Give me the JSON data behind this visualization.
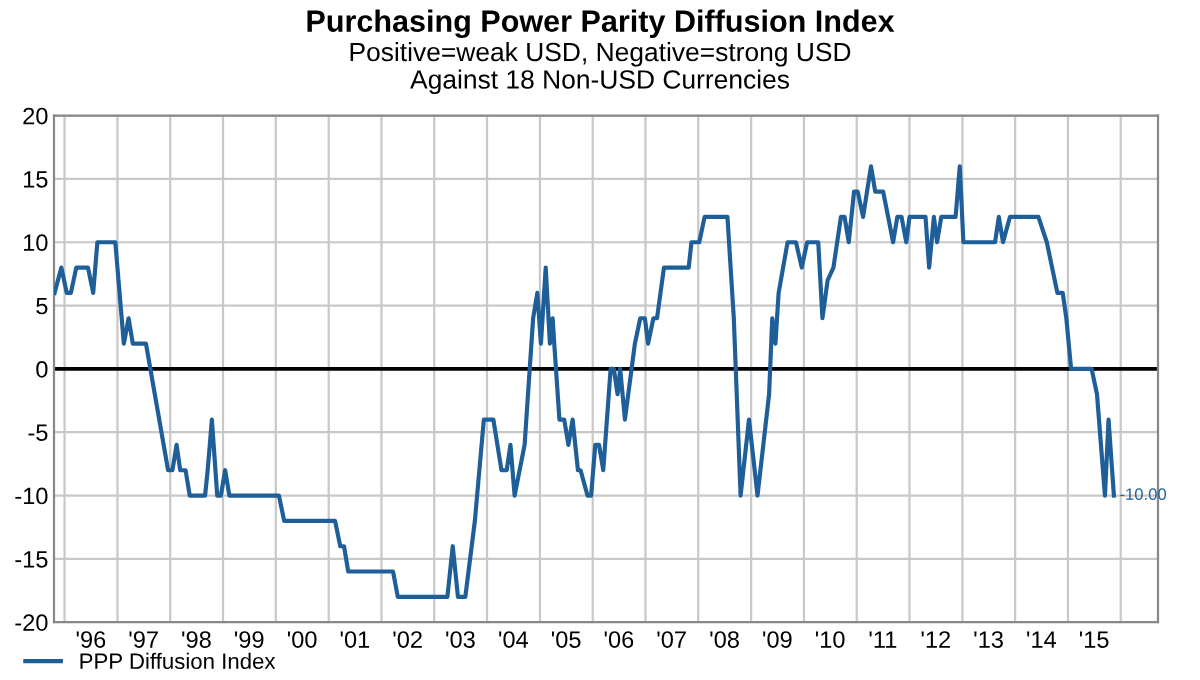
{
  "chart_data": {
    "type": "line",
    "title": "Purchasing Power Parity Diffusion Index",
    "subtitle": "Positive=weak USD, Negative=strong USD\nAgainst 18 Non-USD Currencies",
    "series": [
      {
        "name": "PPP Diffusion Index",
        "color": "#1f5f99",
        "x": [
          "1995-10-24",
          "1995-12-10",
          "1996-01-16",
          "1996-02-14",
          "1996-03-22",
          "1996-06-11",
          "1996-07-17",
          "1996-08-15",
          "1996-12-17",
          "1997-02-14",
          "1997-03-19",
          "1997-04-17",
          "1997-07-17",
          "1997-12-17",
          "1998-01-16",
          "1998-02-14",
          "1998-03-11",
          "1998-04-17",
          "1998-05-16",
          "1998-08-30",
          "1998-09-17",
          "1998-10-16",
          "1998-11-22",
          "1998-12-17",
          "1999-01-16",
          "1999-02-14",
          "2000-01-23",
          "2000-02-28",
          "2001-02-14",
          "2001-03-22",
          "2001-04-17",
          "2001-05-16",
          "2002-03-22",
          "2002-04-24",
          "2003-04-02",
          "2003-05-09",
          "2003-06-14",
          "2003-08-04",
          "2003-10-09",
          "2003-12-10",
          "2004-02-14",
          "2004-04-10",
          "2004-05-16",
          "2004-06-11",
          "2004-07-10",
          "2004-09-17",
          "2004-11-15",
          "2004-12-14",
          "2005-01-08",
          "2005-02-10",
          "2005-03-11",
          "2005-03-30",
          "2005-04-10",
          "2005-05-16",
          "2005-06-18",
          "2005-07-17",
          "2005-08-15",
          "2005-09-21",
          "2005-10-09",
          "2005-11-26",
          "2005-12-21",
          "2006-01-19",
          "2006-02-14",
          "2006-03-15",
          "2006-05-05",
          "2006-05-27",
          "2006-06-22",
          "2006-07-10",
          "2006-08-12",
          "2006-10-20",
          "2006-11-26",
          "2006-12-28",
          "2007-01-19",
          "2007-02-25",
          "2007-03-22",
          "2007-05-09",
          "2007-10-27",
          "2007-11-15",
          "2008-01-08",
          "2008-02-14",
          "2008-07-21",
          "2008-09-03",
          "2008-10-20",
          "2008-12-17",
          "2009-02-14",
          "2009-05-05",
          "2009-05-27",
          "2009-06-18",
          "2009-07-10",
          "2009-09-10",
          "2009-11-07",
          "2009-12-17",
          "2010-01-23",
          "2010-04-10",
          "2010-05-09",
          "2010-06-14",
          "2010-07-24",
          "2010-09-14",
          "2010-10-09",
          "2010-11-07",
          "2010-12-14",
          "2011-01-08",
          "2011-02-14",
          "2011-04-10",
          "2011-05-09",
          "2011-07-03",
          "2011-09-10",
          "2011-10-09",
          "2011-11-07",
          "2011-12-10",
          "2012-01-01",
          "2012-04-21",
          "2012-05-16",
          "2012-06-18",
          "2012-07-10",
          "2012-08-08",
          "2012-11-15",
          "2012-12-14",
          "2013-01-08",
          "2013-08-15",
          "2013-09-10",
          "2013-10-09",
          "2013-11-26",
          "2014-06-11",
          "2014-08-08",
          "2014-10-20",
          "2014-11-26",
          "2014-12-21",
          "2015-01-23",
          "2015-06-14",
          "2015-07-21",
          "2015-09-14",
          "2015-10-09",
          "2015-11-15"
        ],
        "values": [
          6,
          8,
          6,
          6,
          8,
          8,
          6,
          10,
          10,
          2,
          4,
          2,
          2,
          -8,
          -8,
          -6,
          -8,
          -8,
          -10,
          -10,
          -8,
          -4,
          -10,
          -10,
          -8,
          -10,
          -10,
          -12,
          -12,
          -14,
          -14,
          -16,
          -16,
          -18,
          -18,
          -14,
          -18,
          -18,
          -12,
          -4,
          -4,
          -8,
          -8,
          -6,
          -10,
          -6,
          4,
          6,
          2,
          8,
          2,
          4,
          2,
          -4,
          -4,
          -6,
          -4,
          -8,
          -8,
          -10,
          -10,
          -6,
          -6,
          -8,
          0,
          0,
          -2,
          0,
          -4,
          2,
          4,
          4,
          2,
          4,
          4,
          8,
          8,
          10,
          10,
          12,
          12,
          4,
          -10,
          -4,
          -10,
          -2,
          4,
          2,
          6,
          10,
          10,
          8,
          10,
          10,
          4,
          7,
          8,
          12,
          12,
          10,
          14,
          14,
          12,
          16,
          14,
          14,
          10,
          12,
          12,
          10,
          12,
          12,
          8,
          12,
          10,
          12,
          12,
          16,
          10,
          10,
          12,
          10,
          12,
          12,
          10,
          6,
          6,
          4,
          0,
          0,
          -2,
          -10,
          -4,
          -10
        ]
      }
    ],
    "xlim": [
      "1995-10-20",
      "2016-09-15"
    ],
    "xticks": [
      {
        "value": "1996-01-01",
        "label": null
      },
      {
        "value": "1997-01-01",
        "label": null
      },
      {
        "value": "1998-01-01",
        "label": null
      },
      {
        "value": "1999-01-01",
        "label": null
      },
      {
        "value": "2000-01-01",
        "label": null
      },
      {
        "value": "2001-01-01",
        "label": null
      },
      {
        "value": "2002-01-01",
        "label": null
      },
      {
        "value": "2003-01-01",
        "label": null
      },
      {
        "value": "2004-01-01",
        "label": null
      },
      {
        "value": "2005-01-01",
        "label": null
      },
      {
        "value": "2006-01-01",
        "label": null
      },
      {
        "value": "2007-01-01",
        "label": null
      },
      {
        "value": "2008-01-01",
        "label": null
      },
      {
        "value": "2009-01-01",
        "label": null
      },
      {
        "value": "2010-01-01",
        "label": null
      },
      {
        "value": "2011-01-01",
        "label": null
      },
      {
        "value": "2012-01-01",
        "label": null
      },
      {
        "value": "2013-01-01",
        "label": null
      },
      {
        "value": "2014-01-01",
        "label": null
      },
      {
        "value": "2015-01-01",
        "label": null
      },
      {
        "value": "2016-01-01",
        "label": null
      },
      {
        "value": "1996-07-01",
        "label": "'96"
      },
      {
        "value": "1997-07-01",
        "label": "'97"
      },
      {
        "value": "1998-07-01",
        "label": "'98"
      },
      {
        "value": "1999-07-01",
        "label": "'99"
      },
      {
        "value": "2000-07-01",
        "label": "'00"
      },
      {
        "value": "2001-07-01",
        "label": "'01"
      },
      {
        "value": "2002-07-01",
        "label": "'02"
      },
      {
        "value": "2003-07-01",
        "label": "'03"
      },
      {
        "value": "2004-07-01",
        "label": "'04"
      },
      {
        "value": "2005-07-01",
        "label": "'05"
      },
      {
        "value": "2006-07-01",
        "label": "'06"
      },
      {
        "value": "2007-07-01",
        "label": "'07"
      },
      {
        "value": "2008-07-01",
        "label": "'08"
      },
      {
        "value": "2009-07-01",
        "label": "'09"
      },
      {
        "value": "2010-07-01",
        "label": "'10"
      },
      {
        "value": "2011-07-01",
        "label": "'11"
      },
      {
        "value": "2012-07-01",
        "label": "'12"
      },
      {
        "value": "2013-07-01",
        "label": "'13"
      },
      {
        "value": "2014-07-01",
        "label": "'14"
      },
      {
        "value": "2015-07-01",
        "label": "'15"
      }
    ],
    "ylim": [
      -20,
      20
    ],
    "yticks": [
      -20,
      -15,
      -10,
      -5,
      0,
      5,
      10,
      15,
      20
    ],
    "ref_lines": [
      {
        "axis": "y",
        "value": 0,
        "label": null,
        "color": "#000000"
      }
    ],
    "annotations": [
      {
        "text": "-10.00",
        "x": "2015-11-15",
        "y": -10
      }
    ],
    "grid": true,
    "legend": "bottom left",
    "marker": "none",
    "line_style": "solid"
  }
}
